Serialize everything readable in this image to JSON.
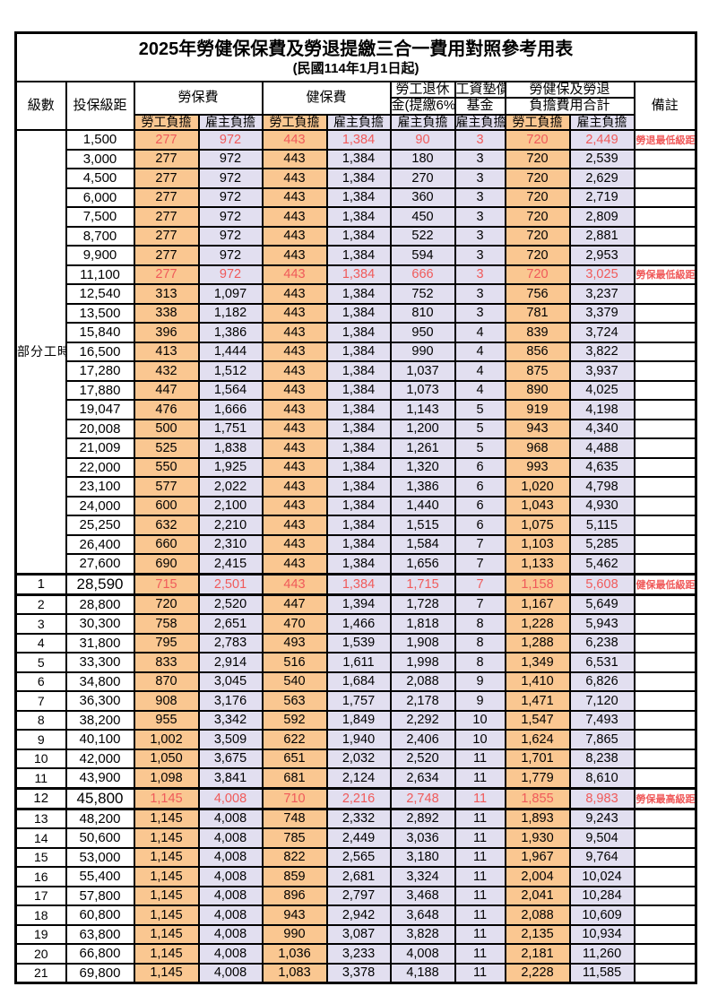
{
  "title": "2025年勞健保保費及勞退提繳三合一費用對照參考用表",
  "subtitle": "(民國114年1月1日起)",
  "header": {
    "level": "級數",
    "bracket": "投保級距",
    "labor": "勞保費",
    "health": "健保費",
    "pension1": "勞工退休",
    "pension2": "金(提繳6%)",
    "fund1": "工資墊償",
    "fund2": "基金",
    "total1": "勞健保及勞退",
    "total2": "負擔費用合計",
    "remark": "備註",
    "employee": "勞工負擔",
    "employer": "雇主負擔"
  },
  "colors": {
    "employee_bg": "#FAC791",
    "employer_bg": "#E2DFF0",
    "highlight_red": "#F05A5A",
    "border": "#000000"
  },
  "rows": [
    {
      "level": "部分工時",
      "levelspan": 23,
      "bracket": "1,500",
      "cells": [
        "277",
        "972",
        "443",
        "1,384",
        "90",
        "3",
        "720",
        "2,449"
      ],
      "note": "勞退最低級距",
      "red": true
    },
    {
      "bracket": "3,000",
      "cells": [
        "277",
        "972",
        "443",
        "1,384",
        "180",
        "3",
        "720",
        "2,539"
      ]
    },
    {
      "bracket": "4,500",
      "cells": [
        "277",
        "972",
        "443",
        "1,384",
        "270",
        "3",
        "720",
        "2,629"
      ]
    },
    {
      "bracket": "6,000",
      "cells": [
        "277",
        "972",
        "443",
        "1,384",
        "360",
        "3",
        "720",
        "2,719"
      ]
    },
    {
      "bracket": "7,500",
      "cells": [
        "277",
        "972",
        "443",
        "1,384",
        "450",
        "3",
        "720",
        "2,809"
      ]
    },
    {
      "bracket": "8,700",
      "cells": [
        "277",
        "972",
        "443",
        "1,384",
        "522",
        "3",
        "720",
        "2,881"
      ]
    },
    {
      "bracket": "9,900",
      "cells": [
        "277",
        "972",
        "443",
        "1,384",
        "594",
        "3",
        "720",
        "2,953"
      ]
    },
    {
      "bracket": "11,100",
      "cells": [
        "277",
        "972",
        "443",
        "1,384",
        "666",
        "3",
        "720",
        "3,025"
      ],
      "note": "勞保最低級距",
      "red": true
    },
    {
      "bracket": "12,540",
      "cells": [
        "313",
        "1,097",
        "443",
        "1,384",
        "752",
        "3",
        "756",
        "3,237"
      ]
    },
    {
      "bracket": "13,500",
      "cells": [
        "338",
        "1,182",
        "443",
        "1,384",
        "810",
        "3",
        "781",
        "3,379"
      ]
    },
    {
      "bracket": "15,840",
      "cells": [
        "396",
        "1,386",
        "443",
        "1,384",
        "950",
        "4",
        "839",
        "3,724"
      ]
    },
    {
      "bracket": "16,500",
      "cells": [
        "413",
        "1,444",
        "443",
        "1,384",
        "990",
        "4",
        "856",
        "3,822"
      ]
    },
    {
      "bracket": "17,280",
      "cells": [
        "432",
        "1,512",
        "443",
        "1,384",
        "1,037",
        "4",
        "875",
        "3,937"
      ]
    },
    {
      "bracket": "17,880",
      "cells": [
        "447",
        "1,564",
        "443",
        "1,384",
        "1,073",
        "4",
        "890",
        "4,025"
      ]
    },
    {
      "bracket": "19,047",
      "cells": [
        "476",
        "1,666",
        "443",
        "1,384",
        "1,143",
        "5",
        "919",
        "4,198"
      ]
    },
    {
      "bracket": "20,008",
      "cells": [
        "500",
        "1,751",
        "443",
        "1,384",
        "1,200",
        "5",
        "943",
        "4,340"
      ]
    },
    {
      "bracket": "21,009",
      "cells": [
        "525",
        "1,838",
        "443",
        "1,384",
        "1,261",
        "5",
        "968",
        "4,488"
      ]
    },
    {
      "bracket": "22,000",
      "cells": [
        "550",
        "1,925",
        "443",
        "1,384",
        "1,320",
        "6",
        "993",
        "4,635"
      ]
    },
    {
      "bracket": "23,100",
      "cells": [
        "577",
        "2,022",
        "443",
        "1,384",
        "1,386",
        "6",
        "1,020",
        "4,798"
      ]
    },
    {
      "bracket": "24,000",
      "cells": [
        "600",
        "2,100",
        "443",
        "1,384",
        "1,440",
        "6",
        "1,043",
        "4,930"
      ]
    },
    {
      "bracket": "25,250",
      "cells": [
        "632",
        "2,210",
        "443",
        "1,384",
        "1,515",
        "6",
        "1,075",
        "5,115"
      ]
    },
    {
      "bracket": "26,400",
      "cells": [
        "660",
        "2,310",
        "443",
        "1,384",
        "1,584",
        "7",
        "1,103",
        "5,285"
      ]
    },
    {
      "bracket": "27,600",
      "cells": [
        "690",
        "2,415",
        "443",
        "1,384",
        "1,656",
        "7",
        "1,133",
        "5,462"
      ]
    },
    {
      "level": "1",
      "bracket": "28,590",
      "cells": [
        "715",
        "2,501",
        "443",
        "1,384",
        "1,715",
        "7",
        "1,158",
        "5,608"
      ],
      "note": "健保最低級距",
      "red": true,
      "big": true
    },
    {
      "level": "2",
      "bracket": "28,800",
      "cells": [
        "720",
        "2,520",
        "447",
        "1,394",
        "1,728",
        "7",
        "1,167",
        "5,649"
      ]
    },
    {
      "level": "3",
      "bracket": "30,300",
      "cells": [
        "758",
        "2,651",
        "470",
        "1,466",
        "1,818",
        "8",
        "1,228",
        "5,943"
      ]
    },
    {
      "level": "4",
      "bracket": "31,800",
      "cells": [
        "795",
        "2,783",
        "493",
        "1,539",
        "1,908",
        "8",
        "1,288",
        "6,238"
      ]
    },
    {
      "level": "5",
      "bracket": "33,300",
      "cells": [
        "833",
        "2,914",
        "516",
        "1,611",
        "1,998",
        "8",
        "1,349",
        "6,531"
      ]
    },
    {
      "level": "6",
      "bracket": "34,800",
      "cells": [
        "870",
        "3,045",
        "540",
        "1,684",
        "2,088",
        "9",
        "1,410",
        "6,826"
      ]
    },
    {
      "level": "7",
      "bracket": "36,300",
      "cells": [
        "908",
        "3,176",
        "563",
        "1,757",
        "2,178",
        "9",
        "1,471",
        "7,120"
      ]
    },
    {
      "level": "8",
      "bracket": "38,200",
      "cells": [
        "955",
        "3,342",
        "592",
        "1,849",
        "2,292",
        "10",
        "1,547",
        "7,493"
      ]
    },
    {
      "level": "9",
      "bracket": "40,100",
      "cells": [
        "1,002",
        "3,509",
        "622",
        "1,940",
        "2,406",
        "10",
        "1,624",
        "7,865"
      ]
    },
    {
      "level": "10",
      "bracket": "42,000",
      "cells": [
        "1,050",
        "3,675",
        "651",
        "2,032",
        "2,520",
        "11",
        "1,701",
        "8,238"
      ]
    },
    {
      "level": "11",
      "bracket": "43,900",
      "cells": [
        "1,098",
        "3,841",
        "681",
        "2,124",
        "2,634",
        "11",
        "1,779",
        "8,610"
      ]
    },
    {
      "level": "12",
      "bracket": "45,800",
      "cells": [
        "1,145",
        "4,008",
        "710",
        "2,216",
        "2,748",
        "11",
        "1,855",
        "8,983"
      ],
      "note": "勞保最高級距",
      "red": true,
      "big": true
    },
    {
      "level": "13",
      "bracket": "48,200",
      "cells": [
        "1,145",
        "4,008",
        "748",
        "2,332",
        "2,892",
        "11",
        "1,893",
        "9,243"
      ]
    },
    {
      "level": "14",
      "bracket": "50,600",
      "cells": [
        "1,145",
        "4,008",
        "785",
        "2,449",
        "3,036",
        "11",
        "1,930",
        "9,504"
      ]
    },
    {
      "level": "15",
      "bracket": "53,000",
      "cells": [
        "1,145",
        "4,008",
        "822",
        "2,565",
        "3,180",
        "11",
        "1,967",
        "9,764"
      ]
    },
    {
      "level": "16",
      "bracket": "55,400",
      "cells": [
        "1,145",
        "4,008",
        "859",
        "2,681",
        "3,324",
        "11",
        "2,004",
        "10,024"
      ]
    },
    {
      "level": "17",
      "bracket": "57,800",
      "cells": [
        "1,145",
        "4,008",
        "896",
        "2,797",
        "3,468",
        "11",
        "2,041",
        "10,284"
      ]
    },
    {
      "level": "18",
      "bracket": "60,800",
      "cells": [
        "1,145",
        "4,008",
        "943",
        "2,942",
        "3,648",
        "11",
        "2,088",
        "10,609"
      ]
    },
    {
      "level": "19",
      "bracket": "63,800",
      "cells": [
        "1,145",
        "4,008",
        "990",
        "3,087",
        "3,828",
        "11",
        "2,135",
        "10,934"
      ]
    },
    {
      "level": "20",
      "bracket": "66,800",
      "cells": [
        "1,145",
        "4,008",
        "1,036",
        "3,233",
        "4,008",
        "11",
        "2,181",
        "11,260"
      ]
    },
    {
      "level": "21",
      "bracket": "69,800",
      "cells": [
        "1,145",
        "4,008",
        "1,083",
        "3,378",
        "4,188",
        "11",
        "2,228",
        "11,585"
      ]
    }
  ]
}
